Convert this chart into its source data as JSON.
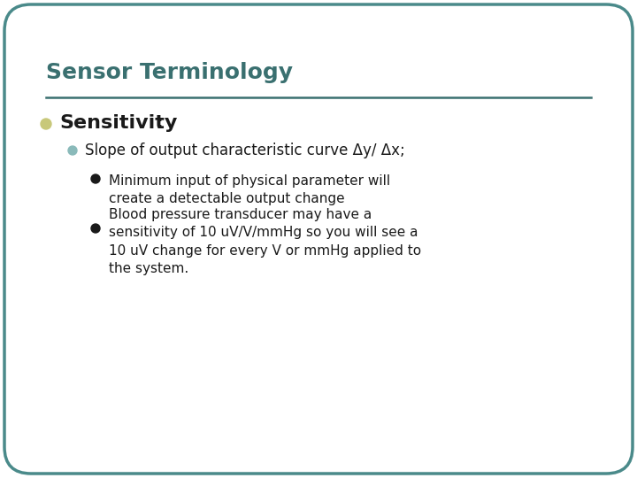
{
  "title": "Sensor Terminology",
  "title_color": "#3A7070",
  "title_fontsize": 18,
  "background_color": "#FFFFFF",
  "border_color": "#4A8A8A",
  "line_color": "#3A7070",
  "bullet_l1_color": "#C8C87A",
  "bullet_l2_color": "#8ABABA",
  "bullet_l3_color": "#1A1A1A",
  "l2_text": "Slope of output characteristic curve Δy/ Δx;",
  "l3_texts": [
    "Minimum input of physical parameter will\ncreate a detectable output change",
    "Blood pressure transducer may have a\nsensitivity of 10 uV/V/mmHg so you will see a\n10 uV change for every V or mmHg applied to\nthe system."
  ],
  "font_family": "DejaVu Sans",
  "l1_fontsize": 16,
  "l2_fontsize": 12,
  "l3_fontsize": 11
}
